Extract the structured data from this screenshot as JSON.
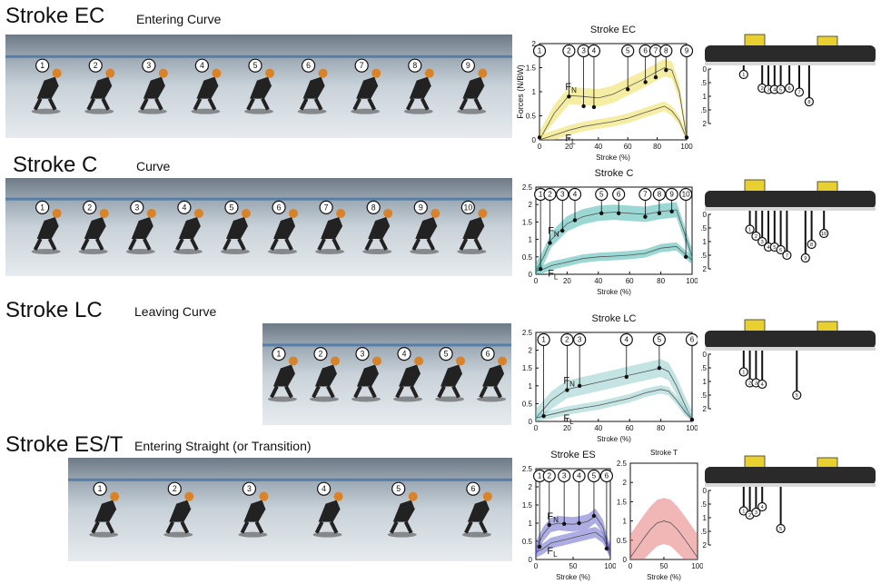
{
  "rows": [
    {
      "title": "Stroke EC",
      "subtitle": "Entering Curve"
    },
    {
      "title": "Stroke C",
      "subtitle": "Curve"
    },
    {
      "title": "Stroke LC",
      "subtitle": "Leaving Curve"
    },
    {
      "title": "Stroke ES/T",
      "subtitle": "Entering Straight (or Transition)"
    }
  ],
  "photos": [
    {
      "markers": [
        "9",
        "8",
        "7",
        "6",
        "5",
        "4",
        "3",
        "2",
        "1"
      ]
    },
    {
      "markers": [
        "10",
        "9",
        "8",
        "7",
        "6",
        "5",
        "4",
        "3",
        "2",
        "1"
      ]
    },
    {
      "markers": [
        "6",
        "5",
        "4",
        "3",
        "2",
        "1"
      ]
    },
    {
      "markers": [
        "6",
        "5",
        "4",
        "3",
        "2",
        "1"
      ]
    }
  ],
  "colors": {
    "ec": "#e8d830",
    "c": "#22a8a0",
    "lc": "#7cc4c0",
    "es": "#4a48c0",
    "t": "#e06060",
    "line": "#555555"
  },
  "chart_data": [
    {
      "type": "line",
      "title": "Stroke EC",
      "xlabel": "Stroke (%)",
      "ylabel": "Forces (N/BW)",
      "xlim": [
        0,
        100
      ],
      "ylim": [
        0,
        2
      ],
      "xticks": [
        0,
        20,
        40,
        60,
        80,
        100
      ],
      "yticks": [
        0,
        0.5,
        1,
        1.5,
        2
      ],
      "x": [
        0,
        10,
        20,
        30,
        40,
        50,
        60,
        70,
        80,
        85,
        90,
        95,
        100
      ],
      "series": [
        {
          "name": "FN",
          "values": [
            0,
            0.55,
            0.92,
            0.9,
            0.87,
            0.95,
            1.1,
            1.25,
            1.42,
            1.5,
            1.45,
            1.0,
            0.05
          ],
          "band": 0.18
        },
        {
          "name": "FL",
          "values": [
            0,
            0.1,
            0.2,
            0.28,
            0.33,
            0.38,
            0.45,
            0.55,
            0.65,
            0.7,
            0.6,
            0.4,
            0.03
          ],
          "band": 0.1
        }
      ],
      "points": [
        {
          "label": "1",
          "x": 0,
          "y": 0.05
        },
        {
          "label": "2",
          "x": 20,
          "y": 0.9
        },
        {
          "label": "3",
          "x": 30,
          "y": 0.7
        },
        {
          "label": "4",
          "x": 37,
          "y": 0.68
        },
        {
          "label": "5",
          "x": 60,
          "y": 1.05
        },
        {
          "label": "6",
          "x": 72,
          "y": 1.2
        },
        {
          "label": "7",
          "x": 79,
          "y": 1.3
        },
        {
          "label": "8",
          "x": 86,
          "y": 1.45
        },
        {
          "label": "9",
          "x": 100,
          "y": 0.05
        }
      ]
    },
    {
      "type": "line",
      "title": "Stroke C",
      "xlabel": "Stroke (%)",
      "ylabel": "",
      "xlim": [
        0,
        100
      ],
      "ylim": [
        0,
        2.5
      ],
      "xticks": [
        0,
        20,
        40,
        60,
        80,
        100
      ],
      "yticks": [
        0,
        0.5,
        1,
        1.5,
        2,
        2.5
      ],
      "x": [
        0,
        5,
        10,
        20,
        30,
        40,
        50,
        60,
        70,
        80,
        90,
        95,
        100
      ],
      "series": [
        {
          "name": "FN",
          "values": [
            0.1,
            0.5,
            1.0,
            1.45,
            1.65,
            1.75,
            1.78,
            1.75,
            1.72,
            1.8,
            1.85,
            1.2,
            0.5
          ],
          "band": 0.22
        },
        {
          "name": "FL",
          "values": [
            0.1,
            0.15,
            0.25,
            0.35,
            0.45,
            0.5,
            0.52,
            0.55,
            0.6,
            0.75,
            0.8,
            0.6,
            0.4
          ],
          "band": 0.12
        }
      ],
      "points": [
        {
          "label": "1",
          "x": 3,
          "y": 0.15
        },
        {
          "label": "2",
          "x": 9,
          "y": 0.9
        },
        {
          "label": "3",
          "x": 17,
          "y": 1.25
        },
        {
          "label": "4",
          "x": 25,
          "y": 1.55
        },
        {
          "label": "5",
          "x": 42,
          "y": 1.75
        },
        {
          "label": "6",
          "x": 53,
          "y": 1.75
        },
        {
          "label": "7",
          "x": 70,
          "y": 1.65
        },
        {
          "label": "8",
          "x": 79,
          "y": 1.75
        },
        {
          "label": "9",
          "x": 87,
          "y": 1.8
        },
        {
          "label": "10",
          "x": 96,
          "y": 0.5
        }
      ]
    },
    {
      "type": "line",
      "title": "Stroke LC",
      "xlabel": "Stroke (%)",
      "ylabel": "",
      "xlim": [
        0,
        100
      ],
      "ylim": [
        0,
        2.5
      ],
      "xticks": [
        0,
        20,
        40,
        60,
        80,
        100
      ],
      "yticks": [
        0,
        0.5,
        1,
        1.5,
        2,
        2.5
      ],
      "x": [
        0,
        10,
        20,
        30,
        40,
        50,
        60,
        70,
        80,
        85,
        90,
        95,
        100
      ],
      "series": [
        {
          "name": "FN",
          "values": [
            0.1,
            0.6,
            0.9,
            1.0,
            1.1,
            1.2,
            1.3,
            1.4,
            1.5,
            1.4,
            1.0,
            0.5,
            0.05
          ],
          "band": 0.25
        },
        {
          "name": "FL",
          "values": [
            0.1,
            0.2,
            0.3,
            0.38,
            0.45,
            0.55,
            0.65,
            0.8,
            0.9,
            0.85,
            0.6,
            0.3,
            0.05
          ],
          "band": 0.12
        }
      ],
      "points": [
        {
          "label": "1",
          "x": 5,
          "y": 0.15
        },
        {
          "label": "2",
          "x": 20,
          "y": 0.88
        },
        {
          "label": "3",
          "x": 28,
          "y": 1.0
        },
        {
          "label": "4",
          "x": 58,
          "y": 1.25
        },
        {
          "label": "5",
          "x": 79,
          "y": 1.5
        },
        {
          "label": "6",
          "x": 100,
          "y": 0.05
        }
      ]
    },
    {
      "type": "line",
      "title": "Stroke ES",
      "xlabel": "Stroke (%)",
      "ylabel": "",
      "xlim": [
        0,
        100
      ],
      "ylim": [
        0,
        2.5
      ],
      "xticks": [
        0,
        50,
        100
      ],
      "yticks": [
        0,
        0.5,
        1,
        1.5,
        2,
        2.5
      ],
      "x": [
        0,
        10,
        20,
        30,
        40,
        50,
        60,
        70,
        80,
        90,
        95,
        100
      ],
      "series": [
        {
          "name": "FN",
          "values": [
            0.3,
            0.7,
            0.95,
            1.0,
            0.98,
            0.97,
            1.0,
            1.05,
            1.2,
            0.9,
            0.5,
            0.2
          ],
          "band": 0.2
        },
        {
          "name": "FL",
          "values": [
            0.2,
            0.3,
            0.45,
            0.5,
            0.55,
            0.6,
            0.65,
            0.7,
            0.75,
            0.6,
            0.4,
            0.2
          ],
          "band": 0.15
        }
      ],
      "points": [
        {
          "label": "1",
          "x": 5,
          "y": 0.35
        },
        {
          "label": "2",
          "x": 18,
          "y": 0.95
        },
        {
          "label": "3",
          "x": 38,
          "y": 0.98
        },
        {
          "label": "4",
          "x": 58,
          "y": 1.0
        },
        {
          "label": "5",
          "x": 78,
          "y": 1.2
        },
        {
          "label": "6",
          "x": 95,
          "y": 0.3
        }
      ]
    },
    {
      "type": "line",
      "title": "Stroke T",
      "xlabel": "Stroke (%)",
      "ylabel": "",
      "xlim": [
        0,
        100
      ],
      "ylim": [
        0,
        2.5
      ],
      "xticks": [
        0,
        50,
        100
      ],
      "yticks": [
        0,
        0.5,
        1,
        1.5,
        2,
        2.5
      ],
      "x": [
        0,
        10,
        20,
        30,
        40,
        50,
        60,
        70,
        80,
        90,
        100
      ],
      "series": [
        {
          "name": "T",
          "values": [
            0.05,
            0.3,
            0.55,
            0.78,
            0.95,
            1.0,
            0.95,
            0.78,
            0.55,
            0.3,
            0.05
          ],
          "band": 0.6
        }
      ],
      "points": []
    }
  ],
  "blades": [
    {
      "yticks": [
        "0",
        "0.5",
        "1",
        "1.5",
        "2"
      ],
      "markers": [
        {
          "label": "1",
          "pos": 0.05,
          "depth": 0.2
        },
        {
          "label": "2",
          "pos": 0.2,
          "depth": 0.7
        },
        {
          "label": "3",
          "pos": 0.25,
          "depth": 0.75
        },
        {
          "label": "4",
          "pos": 0.3,
          "depth": 0.75
        },
        {
          "label": "5",
          "pos": 0.35,
          "depth": 0.75
        },
        {
          "label": "6",
          "pos": 0.42,
          "depth": 0.7
        },
        {
          "label": "7",
          "pos": 0.5,
          "depth": 0.85
        },
        {
          "label": "8",
          "pos": 0.58,
          "depth": 1.2
        }
      ]
    },
    {
      "yticks": [
        "0",
        "0.5",
        "1",
        "1.5",
        "2"
      ],
      "markers": [
        {
          "label": "1",
          "pos": 0.1,
          "depth": 0.55
        },
        {
          "label": "2",
          "pos": 0.15,
          "depth": 0.8
        },
        {
          "label": "3",
          "pos": 0.2,
          "depth": 1.0
        },
        {
          "label": "4",
          "pos": 0.25,
          "depth": 1.2
        },
        {
          "label": "5",
          "pos": 0.3,
          "depth": 1.2
        },
        {
          "label": "6",
          "pos": 0.35,
          "depth": 1.3
        },
        {
          "label": "7",
          "pos": 0.4,
          "depth": 1.5
        },
        {
          "label": "8",
          "pos": 0.6,
          "depth": 1.1
        },
        {
          "label": "9",
          "pos": 0.55,
          "depth": 1.6
        },
        {
          "label": "10",
          "pos": 0.7,
          "depth": 0.7
        }
      ]
    },
    {
      "yticks": [
        "0",
        "0.5",
        "1",
        "1.5",
        "2"
      ],
      "markers": [
        {
          "label": "1",
          "pos": 0.05,
          "depth": 0.65
        },
        {
          "label": "2",
          "pos": 0.1,
          "depth": 1.05
        },
        {
          "label": "3",
          "pos": 0.15,
          "depth": 1.05
        },
        {
          "label": "4",
          "pos": 0.2,
          "depth": 1.1
        },
        {
          "label": "5",
          "pos": 0.48,
          "depth": 1.5
        }
      ]
    },
    {
      "yticks": [
        "0",
        "0.5",
        "1",
        "1.5",
        "2"
      ],
      "markers": [
        {
          "label": "1",
          "pos": 0.05,
          "depth": 0.75
        },
        {
          "label": "2",
          "pos": 0.1,
          "depth": 0.9
        },
        {
          "label": "3",
          "pos": 0.15,
          "depth": 0.8
        },
        {
          "label": "4",
          "pos": 0.2,
          "depth": 0.6
        },
        {
          "label": "5",
          "pos": 0.35,
          "depth": 1.4
        }
      ]
    }
  ]
}
